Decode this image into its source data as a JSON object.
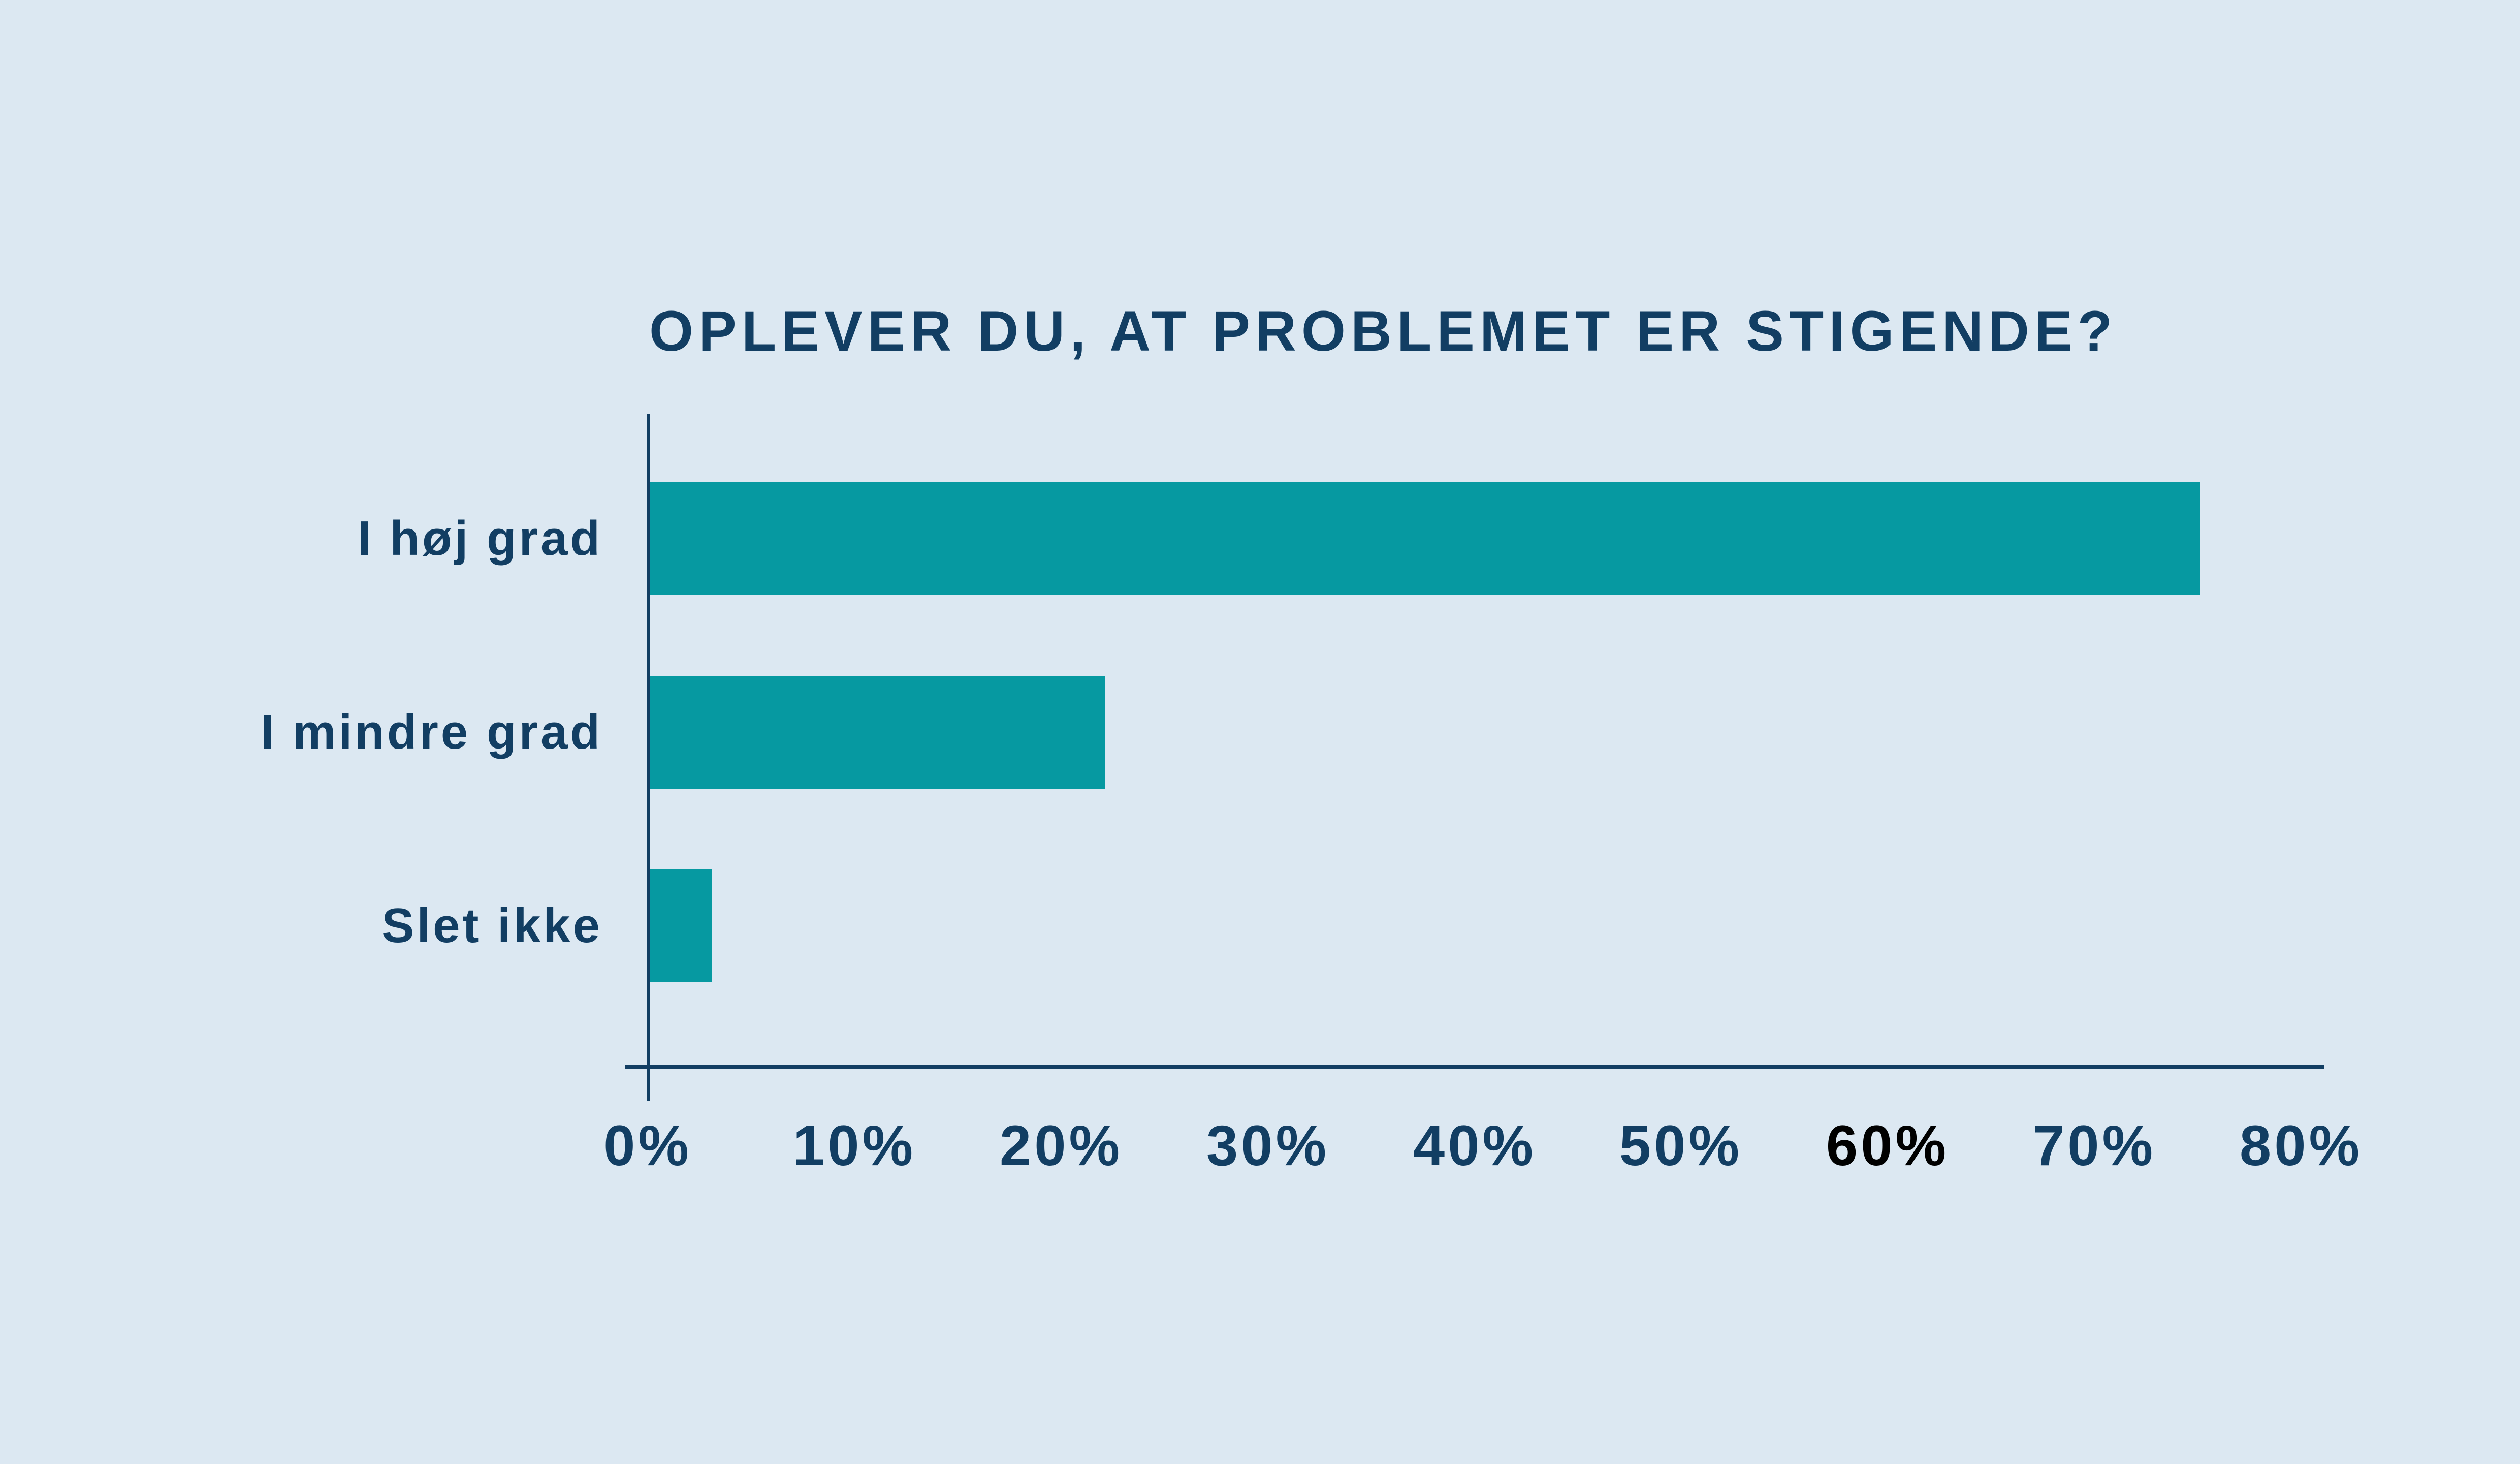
{
  "colors": {
    "background": "#dce8f2",
    "navy": "#123e63",
    "teal": "#0699a1",
    "highlight_tick_color": "#000000"
  },
  "chart_data": {
    "type": "bar",
    "orientation": "horizontal",
    "title": "OPLEVER DU, AT PROBLEMET ER STIGENDE?",
    "categories": [
      "I høj grad",
      "I mindre grad",
      "Slet ikke"
    ],
    "values": [
      75,
      22,
      3
    ],
    "unit": "%",
    "xlabel": "",
    "ylabel": "",
    "xlim": [
      0,
      80
    ],
    "x_tick_values": [
      0,
      10,
      20,
      30,
      40,
      50,
      60,
      70,
      80
    ],
    "x_tick_labels": [
      "0%",
      "10%",
      "20%",
      "30%",
      "40%",
      "50%",
      "60%",
      "70%",
      "80%"
    ],
    "highlight_tick": {
      "label": "60%"
    },
    "grid": false,
    "legend": false
  }
}
